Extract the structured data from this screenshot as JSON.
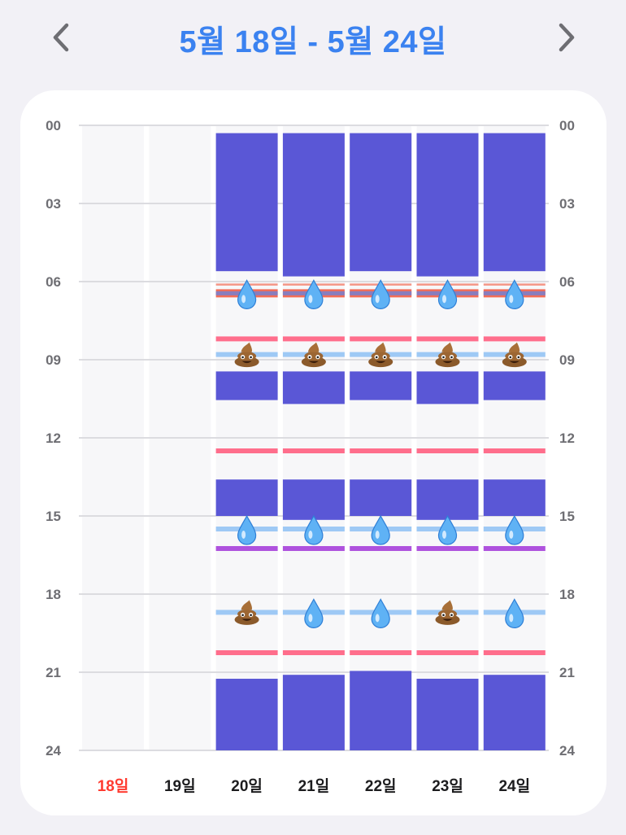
{
  "header": {
    "title": "5월 18일 - 5월 24일",
    "prev_icon": "chevron-left-icon",
    "next_icon": "chevron-right-icon"
  },
  "colors": {
    "accent": "#3b82f0",
    "sleep": "#5a57d6",
    "feed": "#f26c57",
    "bath": "#ff6e8c",
    "water": "#9ec9f5",
    "purple": "#af52de",
    "today": "#ff3b30",
    "column_bg": "#f7f7f9"
  },
  "chart_data": {
    "type": "timeline",
    "y_ticks": [
      "00",
      "03",
      "06",
      "09",
      "12",
      "15",
      "18",
      "21",
      "24"
    ],
    "y_range_hours": [
      0,
      24
    ],
    "days": [
      {
        "label": "18일",
        "highlight": true,
        "sleep": [],
        "lines": [],
        "icons": []
      },
      {
        "label": "19일",
        "highlight": false,
        "sleep": [],
        "lines": [],
        "icons": []
      },
      {
        "label": "20일",
        "highlight": false,
        "sleep": [
          [
            0.3,
            5.6
          ],
          [
            9.45,
            10.55
          ],
          [
            13.6,
            15.0
          ],
          [
            21.25,
            24
          ]
        ],
        "lines": [
          {
            "kind": "feed",
            "h": 6.45
          },
          {
            "kind": "bath",
            "h": 8.2
          },
          {
            "kind": "water",
            "h": 8.8
          },
          {
            "kind": "bath",
            "h": 12.5
          },
          {
            "kind": "water",
            "h": 15.5
          },
          {
            "kind": "purple",
            "h": 16.25
          },
          {
            "kind": "water",
            "h": 18.7
          },
          {
            "kind": "bath",
            "h": 20.25
          }
        ],
        "icons": [
          {
            "icon": "droplet-icon",
            "h": 6.45
          },
          {
            "icon": "poop-icon",
            "h": 8.8
          },
          {
            "icon": "droplet-icon",
            "h": 15.5
          },
          {
            "icon": "poop-icon",
            "h": 18.7
          }
        ]
      },
      {
        "label": "21일",
        "highlight": false,
        "sleep": [
          [
            0.3,
            5.8
          ],
          [
            9.45,
            10.7
          ],
          [
            13.6,
            15.15
          ],
          [
            21.1,
            24
          ]
        ],
        "lines": [
          {
            "kind": "feed",
            "h": 6.45
          },
          {
            "kind": "bath",
            "h": 8.2
          },
          {
            "kind": "water",
            "h": 8.8
          },
          {
            "kind": "bath",
            "h": 12.5
          },
          {
            "kind": "water",
            "h": 15.5
          },
          {
            "kind": "purple",
            "h": 16.25
          },
          {
            "kind": "water",
            "h": 18.7
          },
          {
            "kind": "bath",
            "h": 20.25
          }
        ],
        "icons": [
          {
            "icon": "droplet-icon",
            "h": 6.45
          },
          {
            "icon": "poop-icon",
            "h": 8.8
          },
          {
            "icon": "droplet-icon",
            "h": 15.5
          },
          {
            "icon": "droplet-icon",
            "h": 18.7
          }
        ]
      },
      {
        "label": "22일",
        "highlight": false,
        "sleep": [
          [
            0.3,
            5.6
          ],
          [
            9.45,
            10.55
          ],
          [
            13.6,
            15.0
          ],
          [
            20.95,
            24
          ]
        ],
        "lines": [
          {
            "kind": "feed",
            "h": 6.45
          },
          {
            "kind": "bath",
            "h": 8.2
          },
          {
            "kind": "water",
            "h": 8.8
          },
          {
            "kind": "bath",
            "h": 12.5
          },
          {
            "kind": "water",
            "h": 15.5
          },
          {
            "kind": "purple",
            "h": 16.25
          },
          {
            "kind": "water",
            "h": 18.7
          },
          {
            "kind": "bath",
            "h": 20.25
          }
        ],
        "icons": [
          {
            "icon": "droplet-icon",
            "h": 6.45
          },
          {
            "icon": "poop-icon",
            "h": 8.8
          },
          {
            "icon": "droplet-icon",
            "h": 15.5
          },
          {
            "icon": "droplet-icon",
            "h": 18.7
          }
        ]
      },
      {
        "label": "23일",
        "highlight": false,
        "sleep": [
          [
            0.3,
            5.8
          ],
          [
            9.45,
            10.7
          ],
          [
            13.6,
            15.15
          ],
          [
            21.25,
            24
          ]
        ],
        "lines": [
          {
            "kind": "feed",
            "h": 6.45
          },
          {
            "kind": "bath",
            "h": 8.2
          },
          {
            "kind": "water",
            "h": 8.8
          },
          {
            "kind": "bath",
            "h": 12.5
          },
          {
            "kind": "water",
            "h": 15.5
          },
          {
            "kind": "purple",
            "h": 16.25
          },
          {
            "kind": "water",
            "h": 18.7
          },
          {
            "kind": "bath",
            "h": 20.25
          }
        ],
        "icons": [
          {
            "icon": "droplet-icon",
            "h": 6.45
          },
          {
            "icon": "poop-icon",
            "h": 8.8
          },
          {
            "icon": "droplet-icon",
            "h": 15.5
          },
          {
            "icon": "poop-icon",
            "h": 18.7
          }
        ]
      },
      {
        "label": "24일",
        "highlight": false,
        "sleep": [
          [
            0.3,
            5.6
          ],
          [
            9.45,
            10.55
          ],
          [
            13.6,
            15.0
          ],
          [
            21.1,
            24
          ]
        ],
        "lines": [
          {
            "kind": "feed",
            "h": 6.45
          },
          {
            "kind": "bath",
            "h": 8.2
          },
          {
            "kind": "water",
            "h": 8.8
          },
          {
            "kind": "bath",
            "h": 12.5
          },
          {
            "kind": "water",
            "h": 15.5
          },
          {
            "kind": "purple",
            "h": 16.25
          },
          {
            "kind": "water",
            "h": 18.7
          },
          {
            "kind": "bath",
            "h": 20.25
          }
        ],
        "icons": [
          {
            "icon": "droplet-icon",
            "h": 6.45
          },
          {
            "icon": "poop-icon",
            "h": 8.8
          },
          {
            "icon": "droplet-icon",
            "h": 15.5
          },
          {
            "icon": "droplet-icon",
            "h": 18.7
          }
        ]
      }
    ]
  }
}
